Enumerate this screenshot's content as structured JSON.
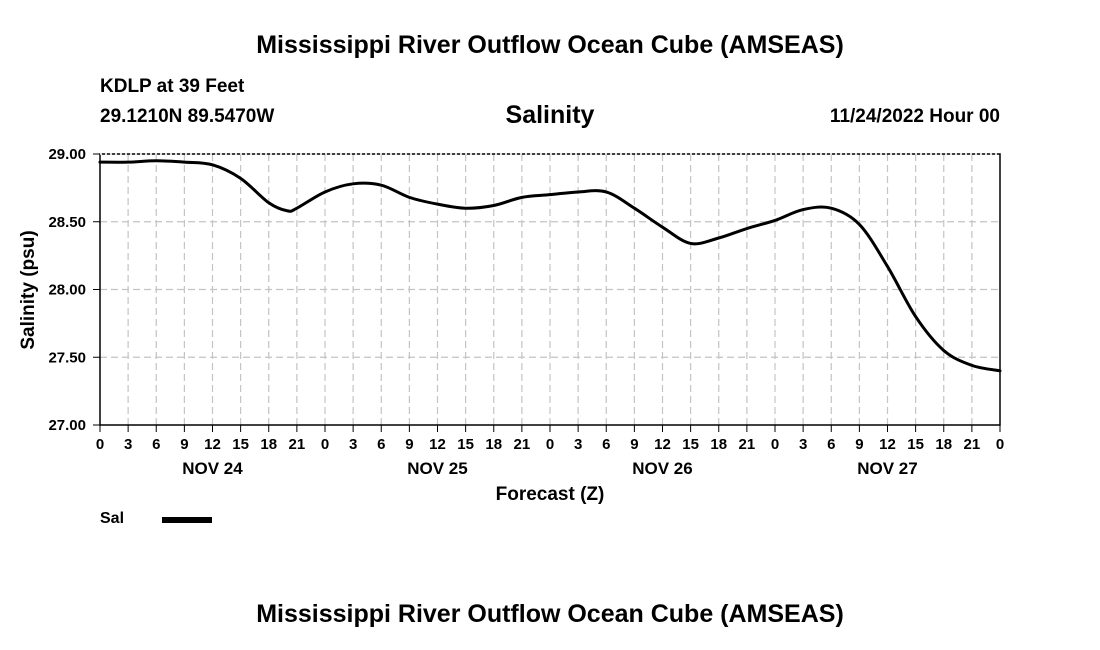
{
  "header": {
    "title": "Mississippi River Outflow Ocean Cube (AMSEAS)",
    "station": "KDLP at 39 Feet",
    "coordinates": "29.1210N  89.5470W",
    "subtitle": "Salinity",
    "datetime": "11/24/2022 Hour 00"
  },
  "footer": {
    "title": "Mississippi River Outflow Ocean Cube (AMSEAS)"
  },
  "legend": {
    "label": "Sal",
    "color": "#000000"
  },
  "chart_data": {
    "type": "line",
    "title": "Salinity",
    "xlabel": "Forecast (Z)",
    "ylabel": "Salinity (psu)",
    "xlim": [
      0,
      96
    ],
    "ylim": [
      27.0,
      29.0
    ],
    "x_ticks": [
      0,
      3,
      6,
      9,
      12,
      15,
      18,
      21,
      24,
      27,
      30,
      33,
      36,
      39,
      42,
      45,
      48,
      51,
      54,
      57,
      60,
      63,
      66,
      69,
      72,
      75,
      78,
      81,
      84,
      87,
      90,
      93,
      96
    ],
    "x_tick_labels": [
      "0",
      "3",
      "6",
      "9",
      "12",
      "15",
      "18",
      "21",
      "0",
      "3",
      "6",
      "9",
      "12",
      "15",
      "18",
      "21",
      "0",
      "3",
      "6",
      "9",
      "12",
      "15",
      "18",
      "21",
      "0",
      "3",
      "6",
      "9",
      "12",
      "15",
      "18",
      "21",
      "0"
    ],
    "y_ticks": [
      27.0,
      27.5,
      28.0,
      28.5,
      29.0
    ],
    "y_tick_labels": [
      "27.00",
      "27.50",
      "28.00",
      "28.50",
      "29.00"
    ],
    "date_labels": [
      {
        "x": 12,
        "label": "NOV 24"
      },
      {
        "x": 36,
        "label": "NOV 25"
      },
      {
        "x": 60,
        "label": "NOV 26"
      },
      {
        "x": 84,
        "label": "NOV 27"
      }
    ],
    "grid": true,
    "legend_position": "bottom-left",
    "series": [
      {
        "name": "Sal",
        "color": "#000000",
        "x": [
          0,
          3,
          6,
          9,
          12,
          15,
          18,
          20,
          21,
          24,
          27,
          30,
          33,
          36,
          39,
          42,
          45,
          48,
          51,
          54,
          57,
          60,
          63,
          66,
          69,
          72,
          75,
          78,
          81,
          84,
          87,
          90,
          93,
          96
        ],
        "y": [
          28.94,
          28.94,
          28.95,
          28.94,
          28.92,
          28.82,
          28.64,
          28.58,
          28.6,
          28.72,
          28.78,
          28.77,
          28.68,
          28.63,
          28.6,
          28.62,
          28.68,
          28.7,
          28.72,
          28.72,
          28.6,
          28.46,
          28.34,
          28.38,
          28.45,
          28.51,
          28.59,
          28.6,
          28.48,
          28.17,
          27.8,
          27.55,
          27.44,
          27.4
        ]
      }
    ]
  }
}
